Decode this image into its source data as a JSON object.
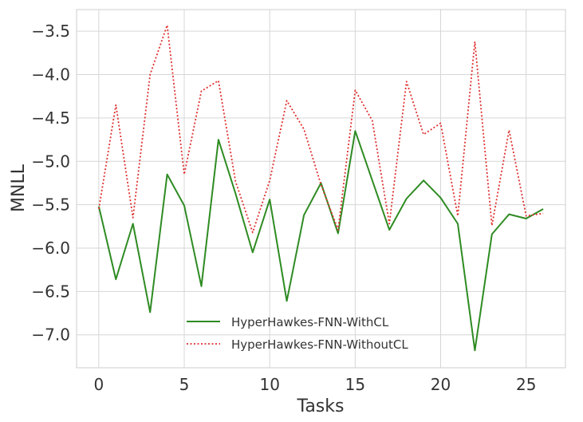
{
  "chart_data": {
    "type": "line",
    "xlabel": "Tasks",
    "ylabel": "MNLL",
    "xlim": [
      -1.3,
      27.3
    ],
    "ylim": [
      -7.38,
      -3.25
    ],
    "xticks": [
      0,
      5,
      10,
      15,
      20,
      25
    ],
    "yticks": [
      -3.5,
      -4.0,
      -4.5,
      -5.0,
      -5.5,
      -6.0,
      -6.5,
      -7.0
    ],
    "grid": true,
    "legend_position": "lower-center",
    "x": [
      0,
      1,
      2,
      3,
      4,
      5,
      6,
      7,
      8,
      9,
      10,
      11,
      12,
      13,
      14,
      15,
      16,
      17,
      18,
      19,
      20,
      21,
      22,
      23,
      24,
      25,
      26
    ],
    "series": [
      {
        "name": "HyperHawkes-FNN-WithCL",
        "color": "#2e8b22",
        "style": "solid",
        "values": [
          -5.52,
          -6.36,
          -5.72,
          -6.74,
          -5.15,
          -5.51,
          -6.44,
          -4.75,
          -5.37,
          -6.05,
          -5.44,
          -6.61,
          -5.62,
          -5.25,
          -5.83,
          -4.65,
          -5.22,
          -5.79,
          -5.43,
          -5.22,
          -5.42,
          -5.72,
          -7.18,
          -5.84,
          -5.61,
          -5.66,
          -5.55
        ]
      },
      {
        "name": "HyperHawkes-FNN-WithoutCL",
        "color": "#e03030",
        "style": "dotted",
        "values": [
          -5.55,
          -4.35,
          -5.65,
          -4.0,
          -3.43,
          -5.15,
          -4.19,
          -4.07,
          -5.23,
          -5.82,
          -5.22,
          -4.3,
          -4.63,
          -5.27,
          -5.79,
          -4.18,
          -4.53,
          -5.72,
          -4.08,
          -4.69,
          -4.56,
          -5.63,
          -3.62,
          -5.74,
          -4.64,
          -5.63,
          -5.6
        ]
      }
    ]
  }
}
